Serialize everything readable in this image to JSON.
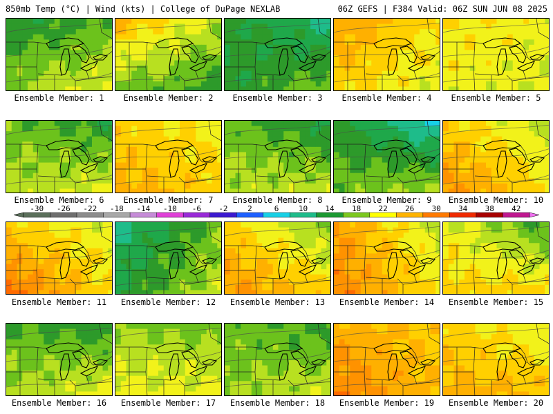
{
  "header": {
    "left": "850mb Temp (°C) | Wind (kts) | College of DuPage NEXLAB",
    "right": "06Z GEFS | F384 Valid: 06Z SUN JUN 08 2025"
  },
  "label_prefix": "Ensemble Member: ",
  "members": [
    {
      "id": 1,
      "label": "Ensemble Member: 1",
      "temps": [
        8,
        10,
        12,
        15
      ]
    },
    {
      "id": 2,
      "label": "Ensemble Member: 2",
      "temps": [
        19,
        13,
        11,
        9
      ]
    },
    {
      "id": 3,
      "label": "Ensemble Member: 3",
      "temps": [
        9,
        5,
        8,
        12
      ]
    },
    {
      "id": 4,
      "label": "Ensemble Member: 4",
      "temps": [
        20,
        16,
        17,
        14
      ]
    },
    {
      "id": 5,
      "label": "Ensemble Member: 5",
      "temps": [
        16,
        15,
        15,
        14
      ]
    },
    {
      "id": 6,
      "label": "Ensemble Member: 6",
      "temps": [
        11,
        8,
        13,
        15
      ]
    },
    {
      "id": 7,
      "label": "Ensemble Member: 7",
      "temps": [
        17,
        15,
        19,
        17
      ]
    },
    {
      "id": 8,
      "label": "Ensemble Member: 8",
      "temps": [
        11,
        7,
        13,
        14
      ]
    },
    {
      "id": 9,
      "label": "Ensemble Member: 9",
      "temps": [
        9,
        3,
        11,
        13
      ]
    },
    {
      "id": 10,
      "label": "Ensemble Member: 10",
      "temps": [
        17,
        13,
        21,
        16
      ]
    },
    {
      "id": 11,
      "label": "Ensemble Member: 11",
      "temps": [
        17,
        14,
        23,
        16
      ]
    },
    {
      "id": 12,
      "label": "Ensemble Member: 12",
      "temps": [
        5,
        11,
        8,
        14
      ]
    },
    {
      "id": 13,
      "label": "Ensemble Member: 13",
      "temps": [
        17,
        11,
        21,
        17
      ]
    },
    {
      "id": 14,
      "label": "Ensemble Member: 14",
      "temps": [
        20,
        13,
        22,
        16
      ]
    },
    {
      "id": 15,
      "label": "Ensemble Member: 15",
      "temps": [
        15,
        9,
        17,
        17
      ]
    },
    {
      "id": 16,
      "label": "Ensemble Member: 16",
      "temps": [
        10,
        8,
        13,
        15
      ]
    },
    {
      "id": 17,
      "label": "Ensemble Member: 17",
      "temps": [
        12,
        11,
        15,
        15
      ]
    },
    {
      "id": 18,
      "label": "Ensemble Member: 18",
      "temps": [
        11,
        9,
        12,
        14
      ]
    },
    {
      "id": 19,
      "label": "Ensemble Member: 19",
      "temps": [
        19,
        17,
        22,
        18
      ]
    },
    {
      "id": 20,
      "label": "Ensemble Member: 20",
      "temps": [
        17,
        14,
        19,
        18
      ]
    }
  ],
  "colorbar": {
    "ticks": [
      "-30",
      "-26",
      "-22",
      "-18",
      "-14",
      "-10",
      "-6",
      "-2",
      "2",
      "6",
      "10",
      "14",
      "18",
      "22",
      "26",
      "30",
      "34",
      "38",
      "42"
    ],
    "min": -32,
    "max": 44,
    "step": 4,
    "bins": [
      {
        "lo": -32,
        "color": "#5a6f5a"
      },
      {
        "lo": -28,
        "color": "#6e6e6e"
      },
      {
        "lo": -24,
        "color": "#8c8c8c"
      },
      {
        "lo": -20,
        "color": "#a8a8a8"
      },
      {
        "lo": -16,
        "color": "#c68cd8"
      },
      {
        "lo": -12,
        "color": "#e040d8"
      },
      {
        "lo": -8,
        "color": "#9a2ad8"
      },
      {
        "lo": -4,
        "color": "#3c1ad0"
      },
      {
        "lo": 0,
        "color": "#1e60ff"
      },
      {
        "lo": 4,
        "color": "#17d0e6"
      },
      {
        "lo": 8,
        "color": "#1ebc8a"
      },
      {
        "lo": 12,
        "color": "#1c9a32"
      },
      {
        "lo": 16,
        "color": "#7cc81e"
      },
      {
        "lo": 20,
        "color": "#ffff00"
      },
      {
        "lo": 24,
        "color": "#ffb400"
      },
      {
        "lo": 28,
        "color": "#ff7a00"
      },
      {
        "lo": 32,
        "color": "#f02a00"
      },
      {
        "lo": 36,
        "color": "#a80000"
      },
      {
        "lo": 40,
        "color": "#c01890"
      },
      {
        "lo": 44,
        "color": "#f070f0"
      }
    ]
  },
  "palette": [
    {
      "lo": -99,
      "color": "#17d0e6"
    },
    {
      "lo": 2,
      "color": "#17d0e6"
    },
    {
      "lo": 4,
      "color": "#1ebc8a"
    },
    {
      "lo": 6,
      "color": "#1fa84a"
    },
    {
      "lo": 8,
      "color": "#2d9a2a"
    },
    {
      "lo": 10,
      "color": "#6cc21c"
    },
    {
      "lo": 12,
      "color": "#b8e020"
    },
    {
      "lo": 14,
      "color": "#f2f21a"
    },
    {
      "lo": 16,
      "color": "#ffd000"
    },
    {
      "lo": 18,
      "color": "#ffb000"
    },
    {
      "lo": 20,
      "color": "#ff9200"
    },
    {
      "lo": 22,
      "color": "#ff6a00"
    },
    {
      "lo": 24,
      "color": "#f03a00"
    },
    {
      "lo": 26,
      "color": "#d01000"
    }
  ]
}
